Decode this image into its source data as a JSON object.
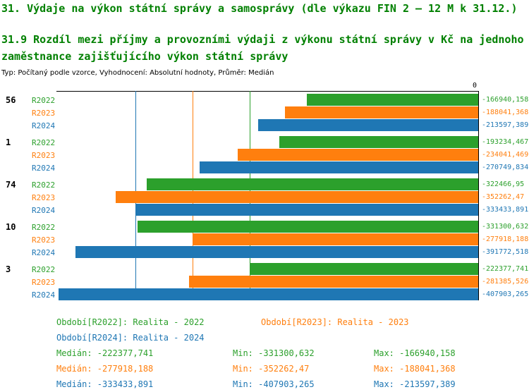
{
  "title": "31. Výdaje na výkon státní správy a samosprávy (dle výkazu FIN 2 – 12 M k 31.12.)",
  "subtitle": "31.9 Rozdíl mezi příjmy a provozními výdaji z výkonu státní správy v Kč na jednoho zaměstnance zajišťujícího výkon státní správy",
  "meta_line": "Typ: Počítaný podle vzorce, Vyhodnocení: Absolutní hodnoty, Průměr: Medián",
  "colors": {
    "title_green": "#008000",
    "series_r2022": "#2ca02c",
    "series_r2023": "#ff7f0e",
    "series_r2024": "#1f77b4",
    "axis": "#000000"
  },
  "chart_data": {
    "type": "bar",
    "orientation": "horizontal",
    "grid": false,
    "legend_position": "bottom",
    "value_axis": {
      "zero_label": "0",
      "xlim": [
        -410000,
        0
      ]
    },
    "categories": [
      "56",
      "1",
      "74",
      "10",
      "3"
    ],
    "series": [
      {
        "name": "R2022",
        "color": "#2ca02c",
        "values": [
          -166940.158,
          -193234.467,
          -322466.95,
          -331300.632,
          -222377.741
        ],
        "value_labels": [
          "-166940,158",
          "-193234,467",
          "-322466,95",
          "-331300,632",
          "-222377,741"
        ]
      },
      {
        "name": "R2023",
        "color": "#ff7f0e",
        "values": [
          -188041.368,
          -234041.469,
          -352262.47,
          -277918.188,
          -281385.526
        ],
        "value_labels": [
          "-188041,368",
          "-234041,469",
          "-352262,47",
          "-277918,188",
          "-281385,526"
        ]
      },
      {
        "name": "R2024",
        "color": "#1f77b4",
        "values": [
          -213597.389,
          -270749.834,
          -333433.891,
          -391772.518,
          -407903.265
        ],
        "value_labels": [
          "-213597,389",
          "-270749,834",
          "-333433,891",
          "-391772,518",
          "-407903,265"
        ]
      }
    ],
    "median_lines": [
      {
        "series": "R2022",
        "value": -222377.741,
        "color": "#2ca02c"
      },
      {
        "series": "R2023",
        "value": -277918.188,
        "color": "#ff7f0e"
      },
      {
        "series": "R2024",
        "value": -333433.891,
        "color": "#1f77b4"
      }
    ]
  },
  "legend": {
    "r2022": "Období[R2022]: Realita - 2022",
    "r2023": "Období[R2023]: Realita - 2023",
    "r2024": "Období[R2024]: Realita - 2024"
  },
  "stats": [
    {
      "series": "R2022",
      "median": "Medián: -222377,741",
      "min": "Min: -331300,632",
      "max": "Max: -166940,158"
    },
    {
      "series": "R2023",
      "median": "Medián: -277918,188",
      "min": "Min: -352262,47",
      "max": "Max: -188041,368"
    },
    {
      "series": "R2024",
      "median": "Medián: -333433,891",
      "min": "Min: -407903,265",
      "max": "Max: -213597,389"
    }
  ]
}
